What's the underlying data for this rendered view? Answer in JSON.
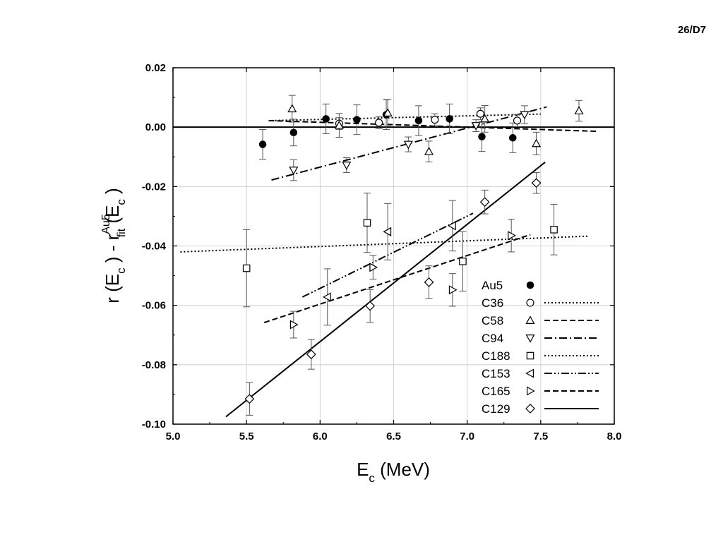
{
  "page": {
    "label": "26/D7"
  },
  "axes": {
    "x_title": {
      "main": "E",
      "sub": "c",
      "rest": " (MeV)"
    },
    "y_title": {
      "p1": "r (E",
      "s1": "c",
      "p2": " ) - r",
      "sup": "Au5",
      "sub": "fit",
      "p3": " (E",
      "s2": "c",
      "p4": " )"
    }
  },
  "chart_data": {
    "type": "scatter",
    "title": "",
    "xlabel": "E_c (MeV)",
    "ylabel": "r (E_c) - r_fit^Au5 (E_c)",
    "xlim": [
      5.0,
      8.0
    ],
    "ylim": [
      -0.1,
      0.02
    ],
    "xticks": [
      5.0,
      5.5,
      6.0,
      6.5,
      7.0,
      7.5,
      8.0
    ],
    "yticks": [
      -0.1,
      -0.08,
      -0.06,
      -0.04,
      -0.02,
      0.0,
      0.02
    ],
    "xtick_labels": [
      "5.0",
      "5.5",
      "6.0",
      "6.5",
      "7.0",
      "7.5",
      "8.0"
    ],
    "ytick_labels": [
      "-0.10",
      "-0.08",
      "-0.06",
      "-0.04",
      "-0.02",
      "0.00",
      "0.02"
    ],
    "grid": true,
    "legend_position": "bottom-right",
    "zero_line": 0.0,
    "series": [
      {
        "name": "Au5",
        "marker": "filled-circle",
        "line": "none",
        "points": [
          [
            5.61,
            -0.0058,
            0.005
          ],
          [
            5.82,
            -0.0018,
            0.0045
          ],
          [
            6.04,
            0.0028,
            0.005
          ],
          [
            6.25,
            0.0025,
            0.005
          ],
          [
            6.45,
            0.0042,
            0.005
          ],
          [
            6.67,
            0.0022,
            0.005
          ],
          [
            6.88,
            0.0028,
            0.005
          ],
          [
            7.1,
            -0.0032,
            0.005
          ],
          [
            7.31,
            -0.0036,
            0.005
          ]
        ],
        "fit": []
      },
      {
        "name": "C36",
        "marker": "open-circle",
        "line": "dotted",
        "points": [
          [
            6.13,
            0.0012,
            0.002
          ],
          [
            6.4,
            0.0015,
            0.002
          ],
          [
            6.78,
            0.0025,
            0.002
          ],
          [
            7.09,
            0.0045,
            0.002
          ],
          [
            7.34,
            0.0022,
            0.002
          ]
        ],
        "fit": [
          [
            5.67,
            0.0022
          ],
          [
            7.5,
            0.0044
          ]
        ]
      },
      {
        "name": "C58",
        "marker": "up-triangle",
        "line": "dashed",
        "points": [
          [
            5.81,
            0.0062,
            0.0045
          ],
          [
            6.13,
            0.0006,
            0.004
          ],
          [
            6.46,
            0.0048,
            0.0045
          ],
          [
            6.74,
            -0.0082,
            0.0035
          ],
          [
            7.12,
            0.0028,
            0.0045
          ],
          [
            7.47,
            -0.0055,
            0.0038
          ],
          [
            7.76,
            0.0055,
            0.0035
          ]
        ],
        "fit": [
          [
            5.65,
            0.0022
          ],
          [
            7.88,
            -0.0014
          ]
        ]
      },
      {
        "name": "C94",
        "marker": "down-triangle",
        "line": "dash-dot",
        "points": [
          [
            5.82,
            -0.0145,
            0.0035
          ],
          [
            6.18,
            -0.0128,
            0.0025
          ],
          [
            6.6,
            -0.0058,
            0.0025
          ],
          [
            7.06,
            0.0005,
            0.002
          ],
          [
            7.39,
            0.0042,
            0.003
          ]
        ],
        "fit": [
          [
            5.67,
            -0.0178
          ],
          [
            7.54,
            0.0068
          ]
        ]
      },
      {
        "name": "C188",
        "marker": "open-square",
        "line": "dotted",
        "points": [
          [
            5.5,
            -0.0475,
            0.013
          ],
          [
            6.32,
            -0.0322,
            0.01
          ],
          [
            6.97,
            -0.0452,
            0.01
          ],
          [
            7.59,
            -0.0345,
            0.0085
          ]
        ],
        "fit": [
          [
            5.05,
            -0.042
          ],
          [
            7.83,
            -0.0367
          ]
        ]
      },
      {
        "name": "C153",
        "marker": "left-triangle",
        "line": "dash-dot-dot",
        "points": [
          [
            6.05,
            -0.0572,
            0.0095
          ],
          [
            6.46,
            -0.0352,
            0.0095
          ],
          [
            6.9,
            -0.0332,
            0.0085
          ]
        ],
        "fit": [
          [
            5.88,
            -0.0572
          ],
          [
            7.04,
            -0.029
          ]
        ]
      },
      {
        "name": "C165",
        "marker": "right-triangle",
        "line": "dashed",
        "points": [
          [
            5.82,
            -0.0665,
            0.0045
          ],
          [
            6.36,
            -0.0472,
            0.004
          ],
          [
            6.9,
            -0.0548,
            0.0055
          ],
          [
            7.3,
            -0.0365,
            0.0055
          ]
        ],
        "fit": [
          [
            5.62,
            -0.0658
          ],
          [
            7.43,
            -0.0362
          ]
        ]
      },
      {
        "name": "C129",
        "marker": "open-diamond",
        "line": "solid",
        "points": [
          [
            5.52,
            -0.0915,
            0.0055
          ],
          [
            5.94,
            -0.0765,
            0.005
          ],
          [
            6.34,
            -0.0602,
            0.0055
          ],
          [
            6.74,
            -0.0522,
            0.0055
          ],
          [
            7.12,
            -0.0252,
            0.004
          ],
          [
            7.47,
            -0.0188,
            0.0035
          ]
        ],
        "fit": [
          [
            5.36,
            -0.0975
          ],
          [
            7.53,
            -0.0118
          ]
        ]
      }
    ]
  }
}
